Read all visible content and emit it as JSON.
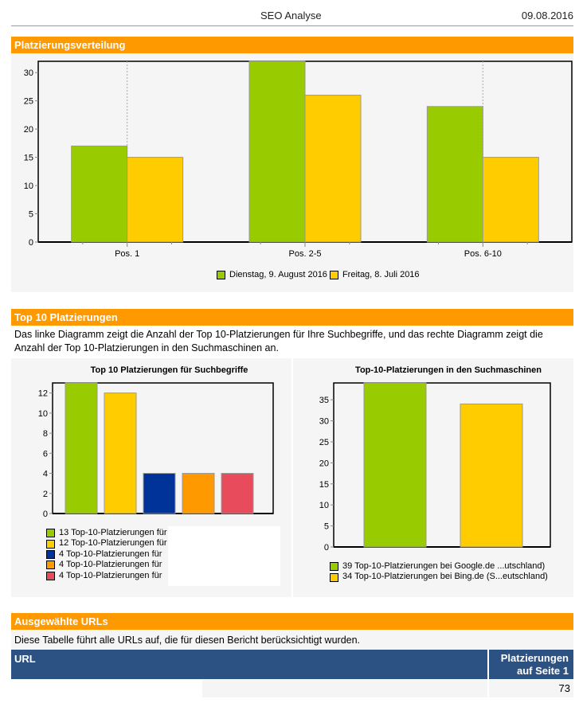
{
  "header": {
    "title": "SEO Analyse",
    "date": "09.08.2016"
  },
  "sections": {
    "distribution": {
      "title": "Platzierungsverteilung"
    },
    "top10": {
      "title": "Top 10 Platzierungen",
      "description": "Das linke Diagramm zeigt die Anzahl der Top 10-Platzierungen für Ihre Suchbegriffe, und das rechte Diagramm zeigt die Anzahl der Top 10-Platzierungen in den Suchmaschinen an."
    },
    "urls": {
      "title": "Ausgewählte URLs",
      "description": "Diese Tabelle führt alle URLs auf, die für diesen Bericht berücksichtigt wurden.",
      "columns": [
        "URL",
        "Platzierungen auf Seite 1"
      ],
      "col2_line1": "Platzierungen",
      "col2_line2": "auf Seite 1",
      "rows": [
        {
          "url": "",
          "count": "73"
        }
      ]
    }
  },
  "chart_data": [
    {
      "type": "bar",
      "title": "Platzierungsverteilung",
      "categories": [
        "Pos. 1",
        "Pos. 2-5",
        "Pos. 6-10"
      ],
      "series": [
        {
          "name": "Dienstag, 9. August 2016",
          "color": "#99cc00",
          "values": [
            17,
            32,
            24
          ]
        },
        {
          "name": "Freitag, 8. Juli 2016",
          "color": "#ffcc00",
          "values": [
            15,
            26,
            15
          ]
        }
      ],
      "ylim": [
        0,
        32
      ],
      "yticks": [
        0,
        5,
        10,
        15,
        20,
        25,
        30
      ],
      "legend": "bottom",
      "grid": false
    },
    {
      "type": "bar",
      "title": "Top 10 Platzierungen für Suchbegriffe",
      "categories": [
        "1",
        "2",
        "3",
        "4",
        "5"
      ],
      "values": [
        13,
        12,
        4,
        4,
        4
      ],
      "colors": [
        "#99cc00",
        "#ffcc00",
        "#003399",
        "#ff9900",
        "#e84c5c"
      ],
      "legend_labels": [
        "13 Top-10-Platzierungen für",
        "12 Top-10-Platzierungen für",
        "4 Top-10-Platzierungen für",
        "4 Top-10-Platzierungen für",
        "4 Top-10-Platzierungen für"
      ],
      "ylim": [
        0,
        13
      ],
      "yticks": [
        0,
        2,
        4,
        6,
        8,
        10,
        12
      ],
      "legend": "bottom"
    },
    {
      "type": "bar",
      "title": "Top-10-Platzierungen in den Suchmaschinen",
      "categories": [
        "Google.de",
        "Bing.de"
      ],
      "values": [
        39,
        34
      ],
      "colors": [
        "#99cc00",
        "#ffcc00"
      ],
      "legend_labels": [
        "39 Top-10-Platzierungen bei Google.de ...utschland)",
        "34 Top-10-Platzierungen bei Bing.de (S...eutschland)"
      ],
      "ylim": [
        0,
        39
      ],
      "yticks": [
        0,
        5,
        10,
        15,
        20,
        25,
        30,
        35
      ],
      "legend": "bottom"
    }
  ]
}
